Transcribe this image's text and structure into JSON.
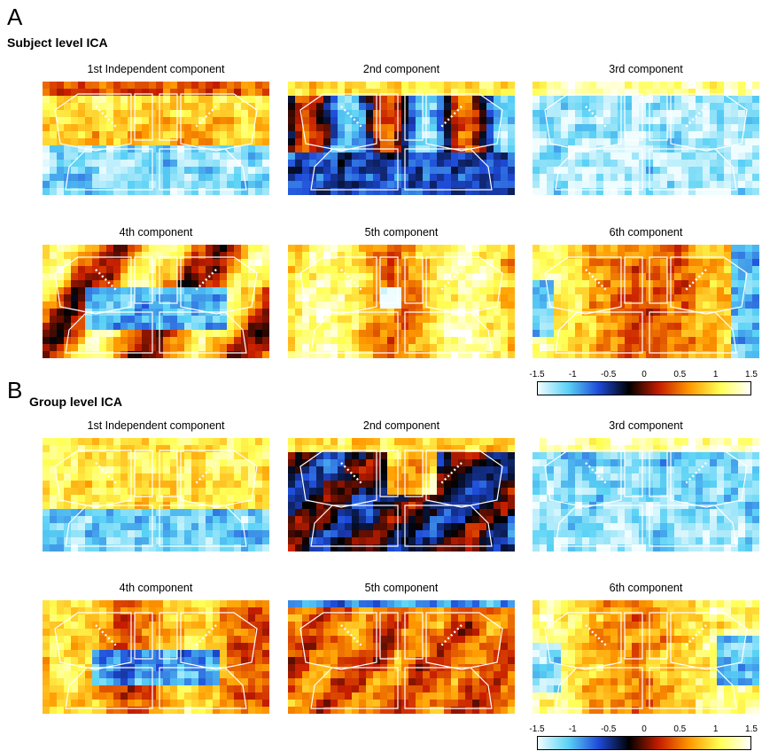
{
  "panelA": {
    "letter": "A",
    "title": "Subject level ICA",
    "components": [
      {
        "title": "1st Independent  component",
        "pattern": "a1"
      },
      {
        "title": "2nd component",
        "pattern": "a2"
      },
      {
        "title": "3rd component",
        "pattern": "a3"
      },
      {
        "title": "4th component",
        "pattern": "a4"
      },
      {
        "title": "5th component",
        "pattern": "a5"
      },
      {
        "title": "6th component",
        "pattern": "a6"
      }
    ],
    "colorbar": {
      "ticks": [
        "-1.5",
        "-1",
        "-0.5",
        "0",
        "0.5",
        "1",
        "1.5"
      ]
    }
  },
  "panelB": {
    "letter": "B",
    "title": "Group level ICA",
    "components": [
      {
        "title": "1st Independent  component",
        "pattern": "b1"
      },
      {
        "title": "2nd component",
        "pattern": "b2"
      },
      {
        "title": "3rd component",
        "pattern": "b3"
      },
      {
        "title": "4th component",
        "pattern": "b4"
      },
      {
        "title": "5th component",
        "pattern": "b5"
      },
      {
        "title": "6th component",
        "pattern": "b6"
      }
    ],
    "colorbar": {
      "ticks": [
        "-1.5",
        "-1",
        "-0.5",
        "0",
        "0.5",
        "1",
        "1.5"
      ]
    }
  },
  "colormap": {
    "range": [
      -1.5,
      1.5
    ],
    "stops": [
      "#f0fdff",
      "#5ad2f5",
      "#1e4ad8",
      "#000000",
      "#c81e00",
      "#ff9a00",
      "#ffff55",
      "#ffffff"
    ]
  }
}
